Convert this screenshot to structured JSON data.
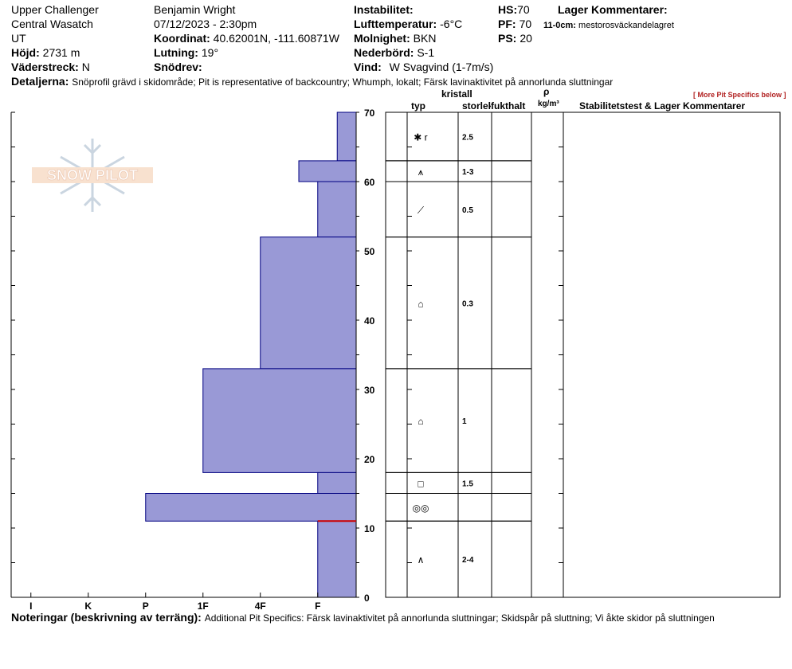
{
  "header": {
    "location": "Upper Challenger",
    "range": "Central Wasatch",
    "state": "UT",
    "elevation_label": "Höjd:",
    "elevation": "2731 m",
    "aspect_label": "Väderstreck:",
    "aspect": "N",
    "observer": "Benjamin Wright",
    "datetime": "07/12/2023 - 2:30pm",
    "coord_label": "Koordinat:",
    "coord": "40.62001N, -111.60871W",
    "slope_label": "Lutning:",
    "slope": "19°",
    "drift_label": "Snödrev:",
    "drift": "",
    "instability_label": "Instabilitet:",
    "instability": "",
    "airtemp_label": "Lufttemperatur:",
    "airtemp": "-6°C",
    "sky_label": "Molnighet:",
    "sky": "BKN",
    "precip_label": "Nederbörd:",
    "precip": "S-1",
    "wind_label": "Vind:",
    "wind": "W Svagvind (1-7m/s)",
    "hs_label": "HS:",
    "hs": "70",
    "pf_label": "PF:",
    "pf": "70",
    "ps_label": "PS:",
    "ps": "20",
    "layer_comments_label": "Lager Kommentarer:",
    "layer_comment_depth": "11-0cm:",
    "layer_comment_text": "mestorosväckandelagret",
    "details_label": "Detaljerna:",
    "details": "Snöprofil grävd i skidområde;  Pit is representative of backcountry;  Whumph, lokalt;  Färsk lavinaktivitet på annorlunda sluttningar",
    "more_specifics": "[ More Pit Specifics below ]"
  },
  "table_headers": {
    "typ": "typ",
    "kristall": "kristall",
    "storlek": "storlek",
    "fukthalt": "fukthalt",
    "rho": "ρ",
    "density_unit": "kg/m³",
    "stability": "Stabilitetstest & Lager Kommentarer"
  },
  "footer": {
    "label": "Noteringar (beskrivning av terräng):",
    "text": "Additional Pit Specifics: Färsk lavinaktivitet på annorlunda sluttningar; Skidspår på sluttning; Vi åkte skidor på sluttningen"
  },
  "chart_data": {
    "type": "bar",
    "orientation": "horizontal",
    "title": "",
    "ylabel": "",
    "ylim": [
      0,
      70
    ],
    "y_ticks": [
      0,
      10,
      20,
      30,
      40,
      50,
      60,
      70
    ],
    "hardness_ticks": [
      "I",
      "K",
      "P",
      "1F",
      "4F",
      "F"
    ],
    "hardness_scale_note": "hardness values: 0 = F (fist) at right edge, increasing leftward",
    "bar_color": "#9999d6",
    "bar_stroke": "#000080",
    "layers": [
      {
        "top": 70,
        "bottom": 63,
        "hardness": 0.33
      },
      {
        "top": 63,
        "bottom": 60,
        "hardness": 1.0
      },
      {
        "top": 60,
        "bottom": 52,
        "hardness": 0.67
      },
      {
        "top": 52,
        "bottom": 33,
        "hardness": 1.67
      },
      {
        "top": 33,
        "bottom": 18,
        "hardness": 2.67
      },
      {
        "top": 18,
        "bottom": 15,
        "hardness": 0.67
      },
      {
        "top": 15,
        "bottom": 11,
        "hardness": 3.67
      },
      {
        "top": 11,
        "bottom": 0,
        "hardness": 0.67
      }
    ],
    "critical_layer_depth": 11,
    "critical_color": "#cc0000",
    "grain_rows": [
      {
        "top": 70,
        "bottom": 63,
        "symbol": "✱ r",
        "size": "2.5"
      },
      {
        "top": 63,
        "bottom": 60,
        "symbol": "⩚",
        "size": "1-3"
      },
      {
        "top": 60,
        "bottom": 52,
        "symbol": "⟋",
        "size": "0.5"
      },
      {
        "top": 52,
        "bottom": 33,
        "symbol": "⌂",
        "size": "0.3"
      },
      {
        "top": 33,
        "bottom": 18,
        "symbol": "⌂",
        "size": "1"
      },
      {
        "top": 18,
        "bottom": 15,
        "symbol": "□",
        "size": "1.5"
      },
      {
        "top": 15,
        "bottom": 11,
        "symbol": "◎◎",
        "size": ""
      },
      {
        "top": 11,
        "bottom": 0,
        "symbol": "∧",
        "size": "2-4"
      }
    ]
  },
  "logo": {
    "text": "SNOW PILOT"
  }
}
